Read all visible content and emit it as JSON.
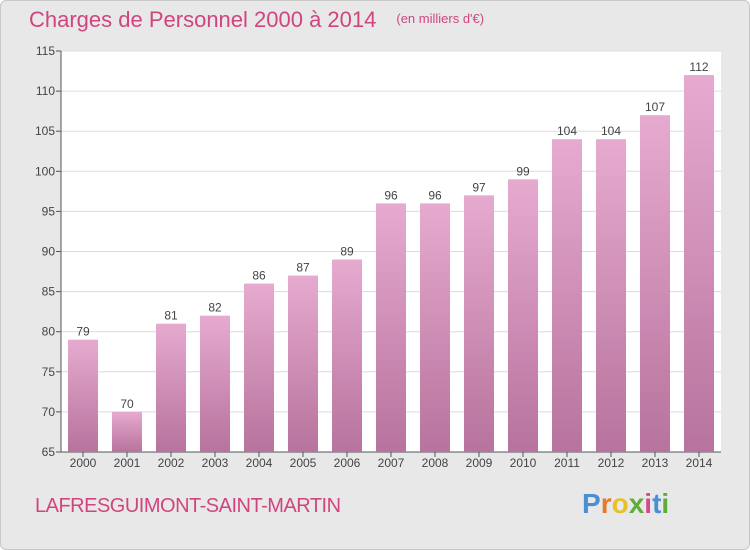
{
  "header": {
    "title": "Charges de Personnel 2000 à 2014",
    "unit": "(en milliers d'€)"
  },
  "footer": {
    "city": "LAFRESGUIMONT-SAINT-MARTIN",
    "brand": "Proxiti",
    "brand_colors": [
      "#4a8fd4",
      "#e8792a",
      "#e8c02a",
      "#5cae3a",
      "#d44a8f",
      "#4a8fd4",
      "#5cae3a"
    ]
  },
  "colors": {
    "bar_top": "#e6aad0",
    "bar_bottom": "#b7739d",
    "title": "#d0457f",
    "plot_bg": "#ffffff",
    "grid": "#dcdcdc"
  },
  "chart_data": {
    "type": "bar",
    "categories": [
      "2000",
      "2001",
      "2002",
      "2003",
      "2004",
      "2005",
      "2006",
      "2007",
      "2008",
      "2009",
      "2010",
      "2011",
      "2012",
      "2013",
      "2014"
    ],
    "values": [
      79,
      70,
      81,
      82,
      86,
      87,
      89,
      96,
      96,
      97,
      99,
      104,
      104,
      107,
      112
    ],
    "title": "Charges de Personnel 2000 à 2014",
    "ylim": [
      65,
      115
    ],
    "yticks": [
      65,
      70,
      75,
      80,
      85,
      90,
      95,
      100,
      105,
      110,
      115
    ],
    "grid": true,
    "data_labels": true
  }
}
